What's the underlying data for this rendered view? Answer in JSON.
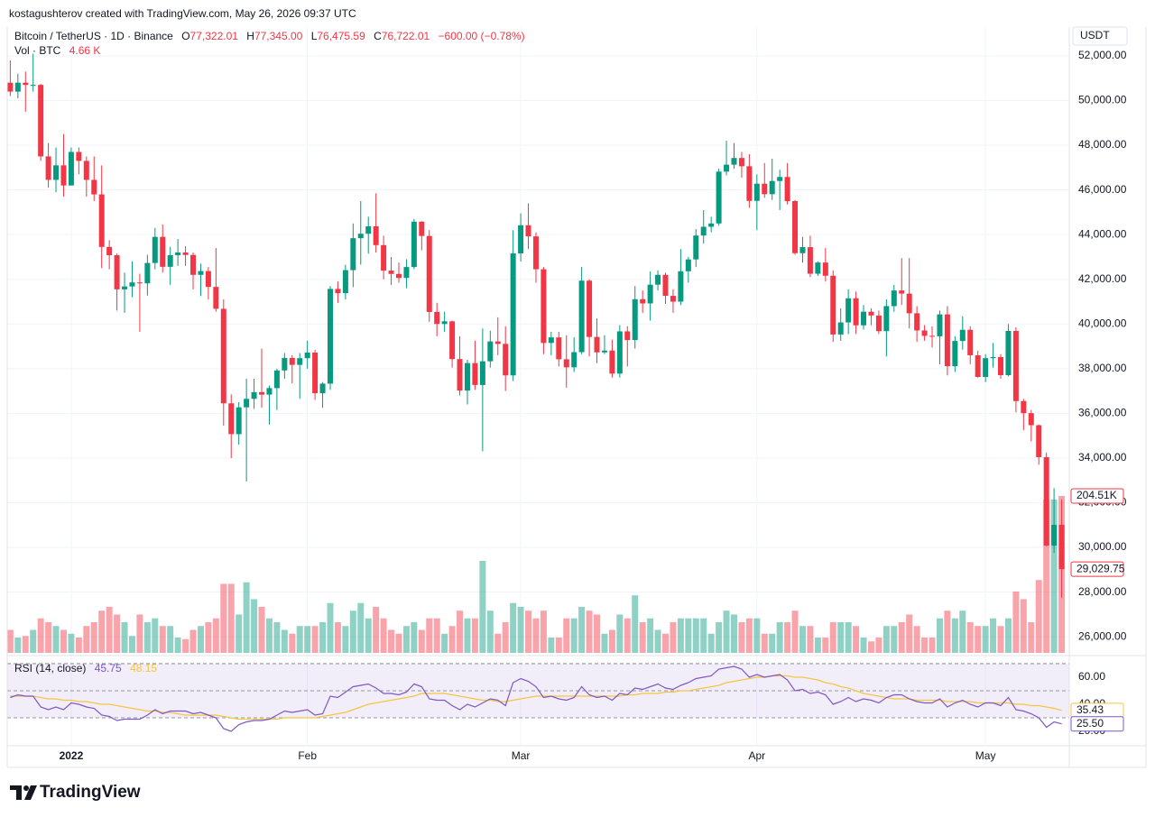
{
  "header": {
    "credit": "kostagushterov created with TradingView.com, May 26, 2026 09:37 UTC",
    "symbol": "Bitcoin / TetherUS · 1D · Binance",
    "o_label": "O",
    "open": "77,322.01",
    "h_label": "H",
    "high": "77,345.00",
    "l_label": "L",
    "low": "76,475.59",
    "c_label": "C",
    "close": "76,722.01",
    "change": "−600.00 (−0.78%)",
    "vol_label": "Vol · BTC",
    "vol": "4.66 K",
    "currency": "USDT"
  },
  "chart_data": {
    "type": "candlestick",
    "open": [
      50800,
      50400,
      50800,
      50700,
      50700,
      47500,
      46450,
      47100,
      46200,
      47700,
      47300,
      46450,
      45800,
      43450,
      43080,
      41550,
      41680,
      41860,
      41820,
      42730,
      43900,
      42560,
      43080,
      43200,
      43090,
      42200,
      42370,
      41660,
      40680,
      36450,
      35070,
      36270,
      36650,
      36950,
      36840,
      37130,
      37920,
      38480,
      38170,
      38470,
      38720,
      36900,
      37330,
      41570,
      41380,
      42410,
      43840,
      44040,
      44370,
      43530,
      42390,
      42240,
      42060,
      42550,
      44580,
      43940,
      40540,
      40000,
      40120,
      38430,
      37020,
      38250,
      37270,
      38330,
      39220,
      39110,
      37700,
      43160,
      44420,
      43920,
      42450,
      39150,
      39400,
      38420,
      38060,
      38740,
      41940,
      39420,
      38730,
      38810,
      37780,
      39670,
      39280,
      41110,
      40920,
      41760,
      42200,
      41260,
      41000,
      42360,
      42890,
      43960,
      44350,
      44500,
      46820,
      47130,
      47430,
      47060,
      45510,
      46280,
      45810,
      46400,
      46580,
      45500,
      43170,
      43440,
      42250,
      42750,
      42160,
      39530,
      40070,
      41150,
      39940,
      40550,
      40380,
      39680,
      40800,
      41500,
      41360,
      40480,
      39710,
      39470,
      39450,
      40430,
      38110,
      39240,
      39740,
      38600,
      37630,
      38470,
      38520,
      37710,
      39690,
      36550,
      36010,
      35470,
      34040,
      30080,
      31010
    ],
    "high": [
      51800,
      51200,
      51300,
      52100,
      50750,
      48100,
      47900,
      48500,
      47900,
      47900,
      47500,
      47500,
      47100,
      43750,
      43150,
      42300,
      42800,
      42250,
      43100,
      44300,
      44450,
      43450,
      43800,
      43480,
      43200,
      42700,
      42550,
      43400,
      41100,
      36850,
      36500,
      37550,
      37550,
      38900,
      37250,
      38000,
      38700,
      38600,
      38700,
      39250,
      38850,
      37400,
      41700,
      41900,
      42650,
      44500,
      45500,
      44800,
      45850,
      43950,
      43000,
      42750,
      42900,
      44700,
      44600,
      44200,
      40950,
      40550,
      40150,
      39450,
      38400,
      39250,
      39800,
      39700,
      40300,
      39900,
      44200,
      44950,
      45400,
      44100,
      42550,
      39650,
      39650,
      39500,
      39400,
      42550,
      42000,
      40250,
      39500,
      39300,
      39950,
      39900,
      41700,
      41500,
      42350,
      42400,
      42300,
      41550,
      43350,
      43000,
      44250,
      45100,
      44800,
      46950,
      48200,
      48100,
      47700,
      47600,
      46700,
      47200,
      47400,
      46900,
      47200,
      45550,
      43900,
      43950,
      42800,
      43400,
      42400,
      40700,
      41550,
      41450,
      40850,
      40700,
      40600,
      41100,
      41750,
      42950,
      42950,
      40800,
      39950,
      39900,
      40600,
      40800,
      39450,
      40350,
      39900,
      38800,
      38650,
      39150,
      38650,
      40000,
      39850,
      36650,
      36150,
      35500,
      34250,
      32650,
      32150
    ],
    "low": [
      50200,
      50100,
      49500,
      50400,
      47300,
      46100,
      45900,
      45700,
      46200,
      46700,
      45700,
      45500,
      42500,
      42450,
      40600,
      40500,
      41200,
      39650,
      41270,
      42450,
      42300,
      41750,
      42600,
      42600,
      41550,
      41250,
      41100,
      40550,
      35450,
      34000,
      34600,
      32950,
      36200,
      36250,
      35500,
      36150,
      37550,
      37350,
      36650,
      38000,
      36600,
      36250,
      37050,
      40950,
      41100,
      41650,
      42650,
      43150,
      43200,
      42000,
      41750,
      41850,
      41600,
      42450,
      43300,
      40100,
      39450,
      39650,
      38050,
      36800,
      36400,
      37050,
      34300,
      38050,
      38600,
      37000,
      37450,
      42800,
      43350,
      41850,
      38650,
      38600,
      38100,
      37150,
      37850,
      38650,
      38550,
      38250,
      38650,
      37600,
      37600,
      38100,
      38900,
      40500,
      40150,
      41500,
      40900,
      40500,
      40850,
      41850,
      42550,
      43600,
      44100,
      44400,
      46650,
      46950,
      46550,
      45200,
      44200,
      45650,
      45550,
      45100,
      45350,
      43100,
      42750,
      42100,
      42150,
      41900,
      39200,
      39250,
      39550,
      39550,
      39750,
      39950,
      39550,
      38550,
      40550,
      40850,
      39800,
      39200,
      39250,
      38950,
      38200,
      37700,
      37850,
      38850,
      38200,
      37600,
      37400,
      38050,
      37550,
      37650,
      36050,
      35250,
      34750,
      33700,
      30050,
      29750,
      27750
    ],
    "close": [
      50400,
      50800,
      50700,
      50700,
      47500,
      46450,
      47100,
      46200,
      47700,
      47300,
      46450,
      45800,
      43450,
      43080,
      41550,
      41680,
      41860,
      41820,
      42730,
      43900,
      42560,
      43080,
      43200,
      43090,
      42200,
      42370,
      41660,
      40680,
      36450,
      35070,
      36270,
      36650,
      36950,
      36840,
      37130,
      37920,
      38480,
      38170,
      38470,
      38720,
      36900,
      37330,
      41570,
      41380,
      42410,
      43840,
      44040,
      44370,
      43530,
      42390,
      42240,
      42060,
      42550,
      44580,
      43940,
      40540,
      40000,
      40120,
      38430,
      37020,
      38250,
      37270,
      38330,
      39220,
      39110,
      37700,
      43160,
      44420,
      43920,
      42450,
      39150,
      39400,
      38420,
      38060,
      38740,
      41940,
      39420,
      38730,
      38810,
      37780,
      39670,
      39280,
      41110,
      40920,
      41760,
      42200,
      41260,
      41000,
      42360,
      42890,
      43960,
      44350,
      44500,
      46820,
      47130,
      47430,
      47060,
      45510,
      46280,
      45810,
      46400,
      46580,
      45500,
      43170,
      43440,
      42250,
      42750,
      42160,
      39530,
      40070,
      41150,
      39940,
      40550,
      40380,
      39680,
      40800,
      41500,
      41360,
      40480,
      39710,
      39470,
      39450,
      40430,
      38110,
      39240,
      39740,
      38600,
      37630,
      38470,
      38520,
      37710,
      39690,
      36550,
      36010,
      35470,
      34040,
      30080,
      31010,
      29029.75
    ],
    "close_labels": {
      "138": "29,029.75"
    },
    "up_color": "#089981",
    "down_color": "#f23645",
    "xlim": [
      -0.4,
      139
    ],
    "xticks": [
      {
        "value": 8,
        "label": "2022"
      },
      {
        "value": 39,
        "label": "Feb"
      },
      {
        "value": 67,
        "label": "Mar"
      },
      {
        "value": 98,
        "label": "Apr"
      },
      {
        "value": 128,
        "label": "May"
      }
    ],
    "ylim": [
      25280,
      53290
    ],
    "yticks": [
      {
        "value": 26000,
        "label": "26,000.00"
      },
      {
        "value": 28000,
        "label": "28,000.00"
      },
      {
        "value": 30000,
        "label": "30,000.00"
      },
      {
        "value": 32000,
        "label": "32,000.00"
      },
      {
        "value": 34000,
        "label": "34,000.00"
      },
      {
        "value": 36000,
        "label": "36,000.00"
      },
      {
        "value": 38000,
        "label": "38,000.00"
      },
      {
        "value": 40000,
        "label": "40,000.00"
      },
      {
        "value": 42000,
        "label": "42,000.00"
      },
      {
        "value": 44000,
        "label": "44,000.00"
      },
      {
        "value": 46000,
        "label": "46,000.00"
      },
      {
        "value": 48000,
        "label": "48,000.00"
      },
      {
        "value": 50000,
        "label": "50,000.00"
      },
      {
        "value": 52000,
        "label": "52,000.00"
      }
    ],
    "grid": true,
    "volume": {
      "values": [
        30000,
        20000,
        22000,
        30000,
        45000,
        40000,
        35000,
        30000,
        25000,
        20000,
        35000,
        40000,
        55000,
        60000,
        50000,
        40000,
        22000,
        50000,
        40000,
        45000,
        35000,
        35000,
        20000,
        18000,
        30000,
        35000,
        40000,
        45000,
        90000,
        90000,
        50000,
        92000,
        70000,
        60000,
        45000,
        40000,
        30000,
        25000,
        35000,
        35000,
        35000,
        40000,
        65000,
        40000,
        35000,
        55000,
        65000,
        45000,
        60000,
        45000,
        30000,
        25000,
        35000,
        40000,
        30000,
        45000,
        45000,
        25000,
        35000,
        55000,
        45000,
        45000,
        120000,
        55000,
        25000,
        40000,
        65000,
        60000,
        55000,
        45000,
        55000,
        20000,
        20000,
        45000,
        45000,
        60000,
        55000,
        50000,
        25000,
        30000,
        50000,
        45000,
        75000,
        40000,
        45000,
        30000,
        25000,
        40000,
        45000,
        45000,
        45000,
        45000,
        25000,
        40000,
        55000,
        50000,
        40000,
        45000,
        45000,
        25000,
        25000,
        40000,
        40000,
        55000,
        35000,
        35000,
        20000,
        20000,
        40000,
        40000,
        40000,
        35000,
        20000,
        15000,
        20000,
        35000,
        35000,
        40000,
        50000,
        35000,
        20000,
        20000,
        45000,
        55000,
        45000,
        55000,
        40000,
        35000,
        35000,
        45000,
        35000,
        45000,
        80000,
        70000,
        40000,
        95000,
        200000,
        200000,
        204510
      ],
      "value_labels": {
        "138": "204.51K"
      }
    },
    "rsi": {
      "name": "RSI (14, close)",
      "header_value": "45.75",
      "ma_header_value": "48.15",
      "color": "#7e57c2",
      "ma_color": "#f5c542",
      "values": [
        45,
        47,
        46,
        46,
        38,
        36,
        38,
        36,
        41,
        40,
        38,
        37,
        32,
        31,
        28,
        29,
        29,
        29,
        32,
        36,
        33,
        35,
        35,
        35,
        33,
        34,
        32,
        30,
        22,
        20,
        25,
        27,
        28,
        28,
        29,
        32,
        35,
        34,
        35,
        36,
        32,
        33,
        46,
        45,
        49,
        53,
        54,
        55,
        52,
        48,
        48,
        47,
        49,
        55,
        53,
        44,
        43,
        43,
        39,
        36,
        40,
        38,
        41,
        44,
        43,
        39,
        56,
        59,
        57,
        53,
        45,
        46,
        44,
        43,
        45,
        53,
        47,
        45,
        46,
        43,
        48,
        47,
        52,
        51,
        53,
        55,
        52,
        51,
        54,
        56,
        59,
        60,
        61,
        66,
        67,
        68,
        66,
        60,
        62,
        60,
        61,
        62,
        58,
        50,
        51,
        48,
        49,
        47,
        40,
        42,
        45,
        42,
        44,
        43,
        41,
        45,
        47,
        47,
        44,
        42,
        41,
        41,
        44,
        38,
        41,
        43,
        40,
        38,
        41,
        41,
        39,
        45,
        36,
        35,
        33,
        30,
        23,
        27,
        25.5
      ],
      "value_labels": {
        "138": "25.50"
      },
      "ma": [
        46,
        46,
        46,
        46,
        45,
        44,
        44,
        43,
        43,
        42,
        42,
        41,
        40,
        40,
        39,
        38,
        37,
        36,
        35,
        35,
        34,
        34,
        33,
        32,
        32,
        32,
        32,
        32,
        31,
        30,
        29,
        29,
        29,
        29,
        29,
        29,
        30,
        30,
        30,
        30,
        30,
        31,
        32,
        33,
        34,
        36,
        38,
        40,
        41,
        42,
        43,
        44,
        45,
        46,
        48,
        48,
        48,
        48,
        47,
        46,
        45,
        44,
        43,
        43,
        42,
        42,
        43,
        44,
        45,
        46,
        46,
        46,
        46,
        46,
        46,
        46,
        46,
        46,
        46,
        46,
        46,
        47,
        47,
        48,
        48,
        48,
        49,
        49,
        50,
        50,
        51,
        52,
        53,
        54,
        56,
        57,
        58,
        59,
        60,
        60,
        61,
        61,
        61,
        60,
        60,
        59,
        58,
        56,
        55,
        53,
        52,
        50,
        48,
        47,
        46,
        45,
        44,
        44,
        44,
        43,
        43,
        43,
        43,
        42,
        42,
        42,
        42,
        41,
        41,
        41,
        41,
        41,
        40,
        40,
        39,
        39,
        38,
        37,
        35.43
      ],
      "ma_labels": {
        "138": "35.43"
      },
      "ylim": [
        10,
        75.3
      ],
      "yticks": [
        {
          "value": 60,
          "label": "60.00"
        },
        {
          "value": 40,
          "label": "40.00"
        },
        {
          "value": 20,
          "label": "20.00"
        }
      ],
      "bands": [
        30,
        50,
        70
      ]
    }
  },
  "footer": {
    "brand": "TradingView"
  }
}
